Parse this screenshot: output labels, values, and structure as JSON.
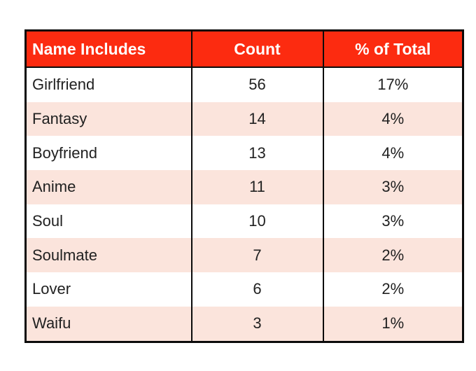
{
  "page": {
    "background_color": "#ffffff"
  },
  "table": {
    "columns": [
      {
        "label": "Name Includes"
      },
      {
        "label": "Count"
      },
      {
        "label": "% of Total"
      }
    ],
    "rows": [
      {
        "name": "Girlfriend",
        "count": "56",
        "percent": "17%"
      },
      {
        "name": "Fantasy",
        "count": "14",
        "percent": "4%"
      },
      {
        "name": "Boyfriend",
        "count": "13",
        "percent": "4%"
      },
      {
        "name": "Anime",
        "count": "11",
        "percent": "3%"
      },
      {
        "name": "Soul",
        "count": "10",
        "percent": "3%"
      },
      {
        "name": "Soulmate",
        "count": "7",
        "percent": "2%"
      },
      {
        "name": "Lover",
        "count": "6",
        "percent": "2%"
      },
      {
        "name": "Waifu",
        "count": "3",
        "percent": "1%"
      }
    ],
    "colors": {
      "header_bg": "#fc2b10",
      "header_text": "#ffffff",
      "row_stripe": "#fbe4dc",
      "row_base": "#ffffff",
      "border": "#0b0b0b",
      "cell_text": "#212121"
    }
  },
  "chart_data": {
    "type": "table",
    "columns": [
      "Name Includes",
      "Count",
      "% of Total"
    ],
    "rows": [
      [
        "Girlfriend",
        56,
        "17%"
      ],
      [
        "Fantasy",
        14,
        "4%"
      ],
      [
        "Boyfriend",
        13,
        "4%"
      ],
      [
        "Anime",
        11,
        "3%"
      ],
      [
        "Soul",
        10,
        "3%"
      ],
      [
        "Soulmate",
        7,
        "2%"
      ],
      [
        "Lover",
        6,
        "2%"
      ],
      [
        "Waifu",
        3,
        "1%"
      ]
    ]
  }
}
